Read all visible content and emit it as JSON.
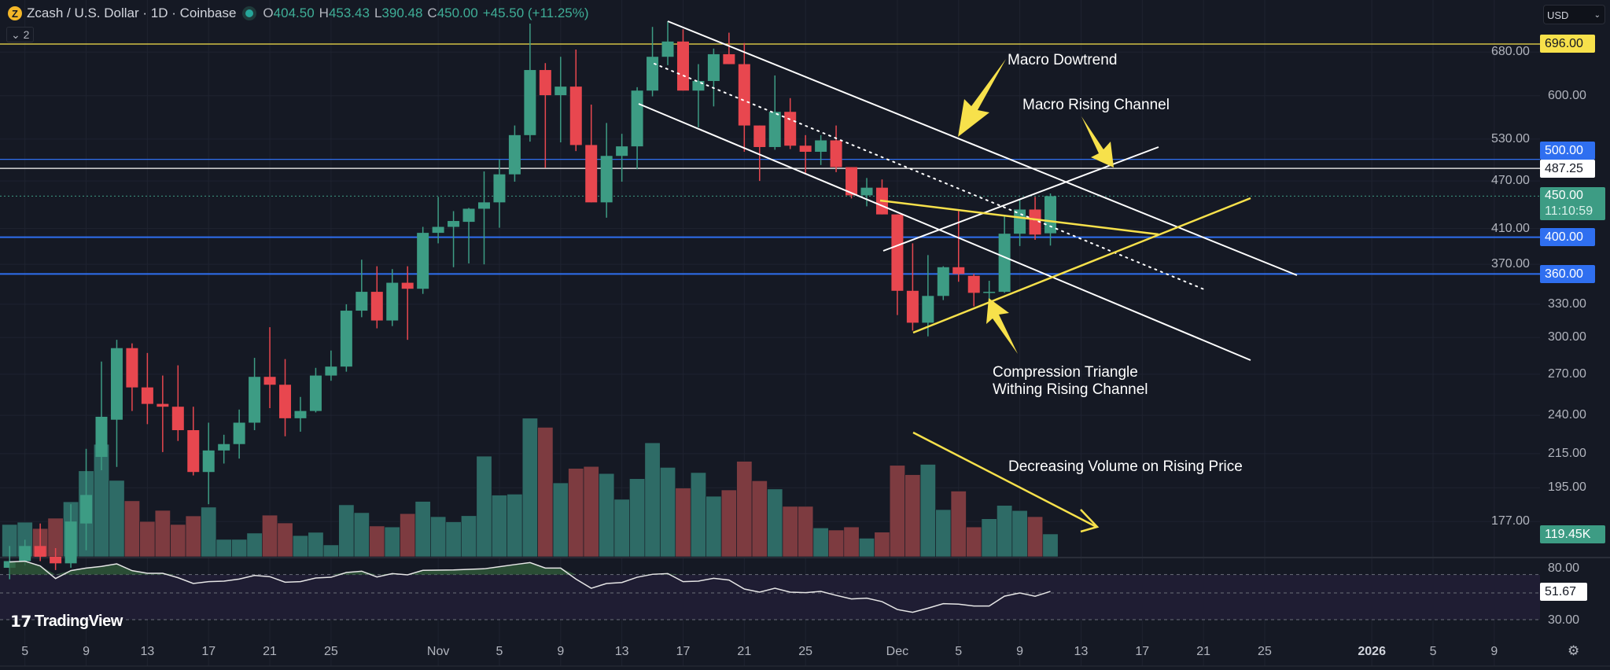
{
  "header": {
    "symbol_logo": "Z",
    "title": "Zcash / U.S. Dollar · 1D · Coinbase",
    "ohlc": {
      "o_label": "O",
      "o": "404.50",
      "h_label": "H",
      "h": "453.43",
      "l_label": "L",
      "l": "390.48",
      "c_label": "C",
      "c": "450.00",
      "change": "+45.50 (+11.25%)"
    },
    "indicators_collapsed": "⌄ 2"
  },
  "currency_select": {
    "value": "USD"
  },
  "colors": {
    "up": "#3d9c84",
    "down": "#e8474f",
    "volume_up": "#2e6b66",
    "volume_down": "#7d3b40",
    "bg": "#151924",
    "yellow": "#f7e14b",
    "blue": "#2f6ff0"
  },
  "price_axis": {
    "scale": "log",
    "ticks": [
      "680.00",
      "600.00",
      "530.00",
      "470.00",
      "410.00",
      "370.00",
      "330.00",
      "300.00",
      "270.00",
      "240.00",
      "215.00",
      "195.00",
      "177.00"
    ],
    "tick_values": [
      680,
      600,
      530,
      470,
      410,
      370,
      330,
      300,
      270,
      240,
      215,
      195,
      177
    ],
    "tags": [
      {
        "label": "696.00",
        "value": 696,
        "style": "yellow"
      },
      {
        "label": "500.00",
        "value": 500,
        "style": "blue"
      },
      {
        "label": "487.25",
        "value": 487.25,
        "style": "white"
      },
      {
        "label": "450.00",
        "value": 450,
        "style": "green",
        "countdown": "11:10:59"
      },
      {
        "label": "400.00",
        "value": 400,
        "style": "blue"
      },
      {
        "label": "360.00",
        "value": 360,
        "style": "blue"
      }
    ],
    "volume_tag": "119.45K"
  },
  "time_axis": {
    "labels": [
      {
        "text": "5",
        "date": "2025-10-05"
      },
      {
        "text": "9",
        "date": "2025-10-09"
      },
      {
        "text": "13",
        "date": "2025-10-13"
      },
      {
        "text": "17",
        "date": "2025-10-17"
      },
      {
        "text": "21",
        "date": "2025-10-21"
      },
      {
        "text": "25",
        "date": "2025-10-25"
      },
      {
        "text": "Nov",
        "date": "2025-11-01"
      },
      {
        "text": "5",
        "date": "2025-11-05"
      },
      {
        "text": "9",
        "date": "2025-11-09"
      },
      {
        "text": "13",
        "date": "2025-11-13"
      },
      {
        "text": "17",
        "date": "2025-11-17"
      },
      {
        "text": "21",
        "date": "2025-11-21"
      },
      {
        "text": "25",
        "date": "2025-11-25"
      },
      {
        "text": "Dec",
        "date": "2025-12-01"
      },
      {
        "text": "5",
        "date": "2025-12-05"
      },
      {
        "text": "9",
        "date": "2025-12-09"
      },
      {
        "text": "13",
        "date": "2025-12-13"
      },
      {
        "text": "17",
        "date": "2025-12-17"
      },
      {
        "text": "21",
        "date": "2025-12-21"
      },
      {
        "text": "25",
        "date": "2025-12-25"
      },
      {
        "text": "2026",
        "date": "2026-01-01"
      },
      {
        "text": "5",
        "date": "2026-01-05"
      },
      {
        "text": "9",
        "date": "2026-01-09"
      }
    ]
  },
  "chart_data": {
    "type": "candlestick",
    "fields": [
      "date",
      "open",
      "high",
      "low",
      "close",
      "volume_k"
    ],
    "candles": [
      [
        "2025-10-04",
        155,
        165,
        150,
        158,
        169
      ],
      [
        "2025-10-05",
        158,
        168,
        156,
        165,
        181
      ],
      [
        "2025-10-06",
        165,
        176,
        158,
        160,
        148
      ],
      [
        "2025-10-07",
        160,
        164,
        154,
        157,
        202
      ],
      [
        "2025-10-08",
        157,
        186,
        155,
        177,
        288
      ],
      [
        "2025-10-09",
        176,
        218,
        163,
        191,
        450
      ],
      [
        "2025-10-10",
        213,
        280,
        205,
        239,
        589
      ],
      [
        "2025-10-11",
        237,
        298,
        207,
        291,
        400
      ],
      [
        "2025-10-12",
        291,
        295,
        243,
        260,
        293
      ],
      [
        "2025-10-13",
        260,
        287,
        234,
        248,
        185
      ],
      [
        "2025-10-14",
        248,
        269,
        216,
        246,
        243
      ],
      [
        "2025-10-15",
        246,
        277,
        223,
        230,
        169
      ],
      [
        "2025-10-16",
        230,
        246,
        202,
        204,
        214
      ],
      [
        "2025-10-17",
        204,
        235,
        186,
        217,
        260
      ],
      [
        "2025-10-18",
        217,
        227,
        209,
        221,
        91
      ],
      [
        "2025-10-19",
        221,
        244,
        212,
        235,
        91
      ],
      [
        "2025-10-20",
        235,
        283,
        230,
        268,
        124
      ],
      [
        "2025-10-21",
        268,
        309,
        245,
        262,
        218
      ],
      [
        "2025-10-22",
        262,
        282,
        226,
        238,
        177
      ],
      [
        "2025-10-23",
        238,
        253,
        229,
        243,
        111
      ],
      [
        "2025-10-24",
        243,
        275,
        242,
        269,
        128
      ],
      [
        "2025-10-25",
        269,
        289,
        265,
        276,
        62
      ],
      [
        "2025-10-26",
        276,
        330,
        272,
        324,
        272
      ],
      [
        "2025-10-27",
        324,
        375,
        318,
        342,
        231
      ],
      [
        "2025-10-28",
        342,
        368,
        308,
        315,
        161
      ],
      [
        "2025-10-29",
        315,
        365,
        310,
        351,
        156
      ],
      [
        "2025-10-30",
        351,
        368,
        298,
        345,
        226
      ],
      [
        "2025-10-31",
        345,
        412,
        340,
        405,
        290
      ],
      [
        "2025-11-01",
        405,
        449,
        393,
        412,
        210
      ],
      [
        "2025-11-02",
        412,
        431,
        367,
        419,
        183
      ],
      [
        "2025-11-03",
        418,
        435,
        371,
        434,
        215
      ],
      [
        "2025-11-04",
        434,
        483,
        370,
        442,
        527
      ],
      [
        "2025-11-05",
        442,
        500,
        411,
        479,
        323
      ],
      [
        "2025-11-06",
        479,
        551,
        469,
        536,
        328
      ],
      [
        "2025-11-07",
        536,
        738,
        526,
        646,
        726
      ],
      [
        "2025-11-08",
        646,
        659,
        488,
        601,
        678
      ],
      [
        "2025-11-09",
        601,
        671,
        525,
        616,
        387
      ],
      [
        "2025-11-10",
        616,
        685,
        512,
        521,
        463
      ],
      [
        "2025-11-11",
        521,
        585,
        442,
        442,
        473
      ],
      [
        "2025-11-12",
        442,
        555,
        423,
        505,
        436
      ],
      [
        "2025-11-13",
        505,
        538,
        469,
        519,
        301
      ],
      [
        "2025-11-14",
        519,
        615,
        486,
        609,
        409
      ],
      [
        "2025-11-15",
        609,
        731,
        599,
        671,
        597
      ],
      [
        "2025-11-16",
        671,
        743,
        655,
        701,
        468
      ],
      [
        "2025-11-17",
        701,
        726,
        609,
        609,
        360
      ],
      [
        "2025-11-18",
        609,
        657,
        548,
        626,
        441
      ],
      [
        "2025-11-19",
        626,
        687,
        582,
        676,
        317
      ],
      [
        "2025-11-20",
        676,
        719,
        657,
        657,
        350
      ],
      [
        "2025-11-21",
        657,
        698,
        511,
        551,
        500
      ],
      [
        "2025-11-22",
        551,
        551,
        470,
        518,
        398
      ],
      [
        "2025-11-23",
        518,
        636,
        514,
        573,
        355
      ],
      [
        "2025-11-24",
        573,
        596,
        515,
        520,
        264
      ],
      [
        "2025-11-25",
        520,
        536,
        481,
        511,
        264
      ],
      [
        "2025-11-26",
        511,
        536,
        492,
        528,
        151
      ],
      [
        "2025-11-27",
        528,
        551,
        482,
        489,
        140
      ],
      [
        "2025-11-28",
        489,
        489,
        447,
        451,
        156
      ],
      [
        "2025-11-29",
        451,
        474,
        437,
        461,
        97
      ],
      [
        "2025-11-30",
        461,
        472,
        427,
        427,
        129
      ],
      [
        "2025-12-01",
        427,
        427,
        320,
        343,
        479
      ],
      [
        "2025-12-02",
        343,
        393,
        306,
        313,
        430
      ],
      [
        "2025-12-03",
        313,
        380,
        301,
        338,
        484
      ],
      [
        "2025-12-04",
        338,
        368,
        334,
        367,
        247
      ],
      [
        "2025-12-05",
        367,
        431,
        352,
        360,
        344
      ],
      [
        "2025-12-06",
        358,
        360,
        328,
        341,
        156
      ],
      [
        "2025-12-07",
        341,
        353,
        333,
        342,
        199
      ],
      [
        "2025-12-08",
        342,
        425,
        341,
        404,
        269
      ],
      [
        "2025-12-09",
        404,
        446,
        390,
        433,
        242
      ],
      [
        "2025-12-10",
        433,
        449,
        397,
        403,
        210
      ],
      [
        "2025-12-11",
        404.5,
        453.43,
        390.48,
        450,
        119.45
      ]
    ],
    "rsi": {
      "ticks": [
        "80.00",
        "30.00"
      ],
      "levels": [
        70,
        50,
        30
      ],
      "current": "51.67",
      "values": [
        83.7,
        84.6,
        79.4,
        65.7,
        74.3,
        77.1,
        78.9,
        81.7,
        74.3,
        71.4,
        71.4,
        66.6,
        60.3,
        62.3,
        62.9,
        65.1,
        69.1,
        67.7,
        61.7,
        62.3,
        66.3,
        67.1,
        72.3,
        73.7,
        67.4,
        71.1,
        69.7,
        74.6,
        74.9,
        75.1,
        75.7,
        76.3,
        78.6,
        80.9,
        83.1,
        77.1,
        77.1,
        65.1,
        55.1,
        60.3,
        61.4,
        67.1,
        70.3,
        71.1,
        62.3,
        62.9,
        66.0,
        64.0,
        54.3,
        50.9,
        55.1,
        50.9,
        50.3,
        51.7,
        48.2,
        45.5,
        46.1,
        43.5,
        37.6,
        35.5,
        38.6,
        42.0,
        41.6,
        40.2,
        40.2,
        47.6,
        50.0,
        47.5,
        51.67
      ]
    }
  },
  "annotations": {
    "macro_downtrend": "Macro Dowtrend",
    "macro_rising_channel": "Macro Rising Channel",
    "compression_line1": "Compression Triangle",
    "compression_line2": "Withing Rising Channel",
    "volume_note": "Decreasing Volume on Rising Price"
  },
  "branding": {
    "logo_text": "TradingView"
  },
  "settings_icon": "gear-icon"
}
